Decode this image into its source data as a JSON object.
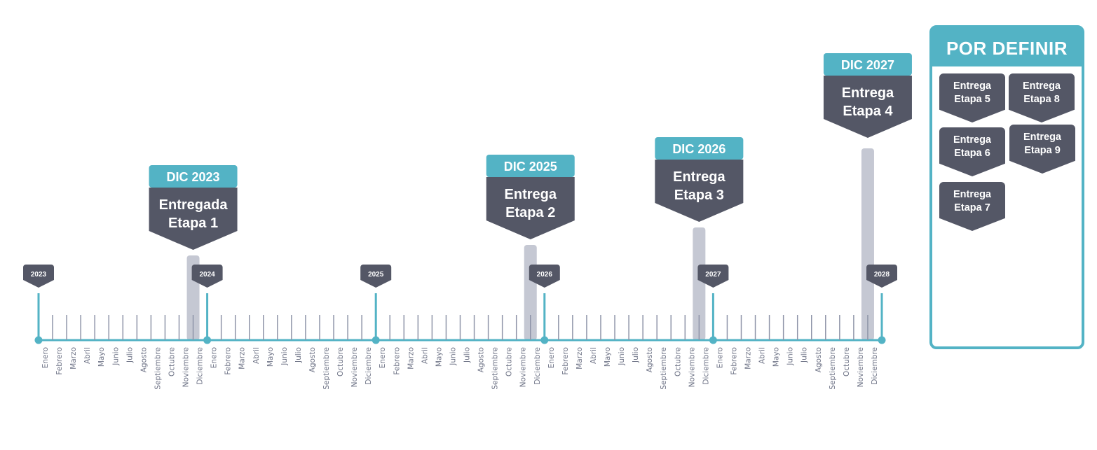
{
  "timeline": {
    "months": [
      "Enero",
      "Febrero",
      "Marzo",
      "Abril",
      "Mayo",
      "Junio",
      "Julio",
      "Agosto",
      "Septiembre",
      "Octubre",
      "Noviembre",
      "Diciembre"
    ],
    "years": [
      "2023",
      "2024",
      "2025",
      "2026",
      "2027",
      "2028"
    ],
    "colors": {
      "axis": "#53b3c5",
      "tick": "#8e94a8",
      "bar": "#c5c8d3",
      "milestone_date_bg": "#53b3c5",
      "milestone_body_bg": "#545766",
      "label": "#6e7386"
    },
    "milestones": [
      {
        "date": "DIC 2023",
        "title_line1": "Entregada",
        "title_line2": "Etapa 1",
        "year_index": 0,
        "month_index": 11
      },
      {
        "date": "DIC 2025",
        "title_line1": "Entrega",
        "title_line2": "Etapa 2",
        "year_index": 2,
        "month_index": 11
      },
      {
        "date": "DIC 2026",
        "title_line1": "Entrega",
        "title_line2": "Etapa 3",
        "year_index": 3,
        "month_index": 11
      },
      {
        "date": "DIC 2027",
        "title_line1": "Entrega",
        "title_line2": "Etapa 4",
        "year_index": 4,
        "month_index": 11
      }
    ]
  },
  "pending": {
    "header": "POR DEFINIR",
    "items": [
      {
        "line1": "Entrega",
        "line2": "Etapa 5"
      },
      {
        "line1": "Entrega",
        "line2": "Etapa 8"
      },
      {
        "line1": "Entrega",
        "line2": "Etapa 6"
      },
      {
        "line1": "Entrega",
        "line2": "Etapa 9"
      },
      {
        "line1": "Entrega",
        "line2": "Etapa 7"
      }
    ]
  }
}
